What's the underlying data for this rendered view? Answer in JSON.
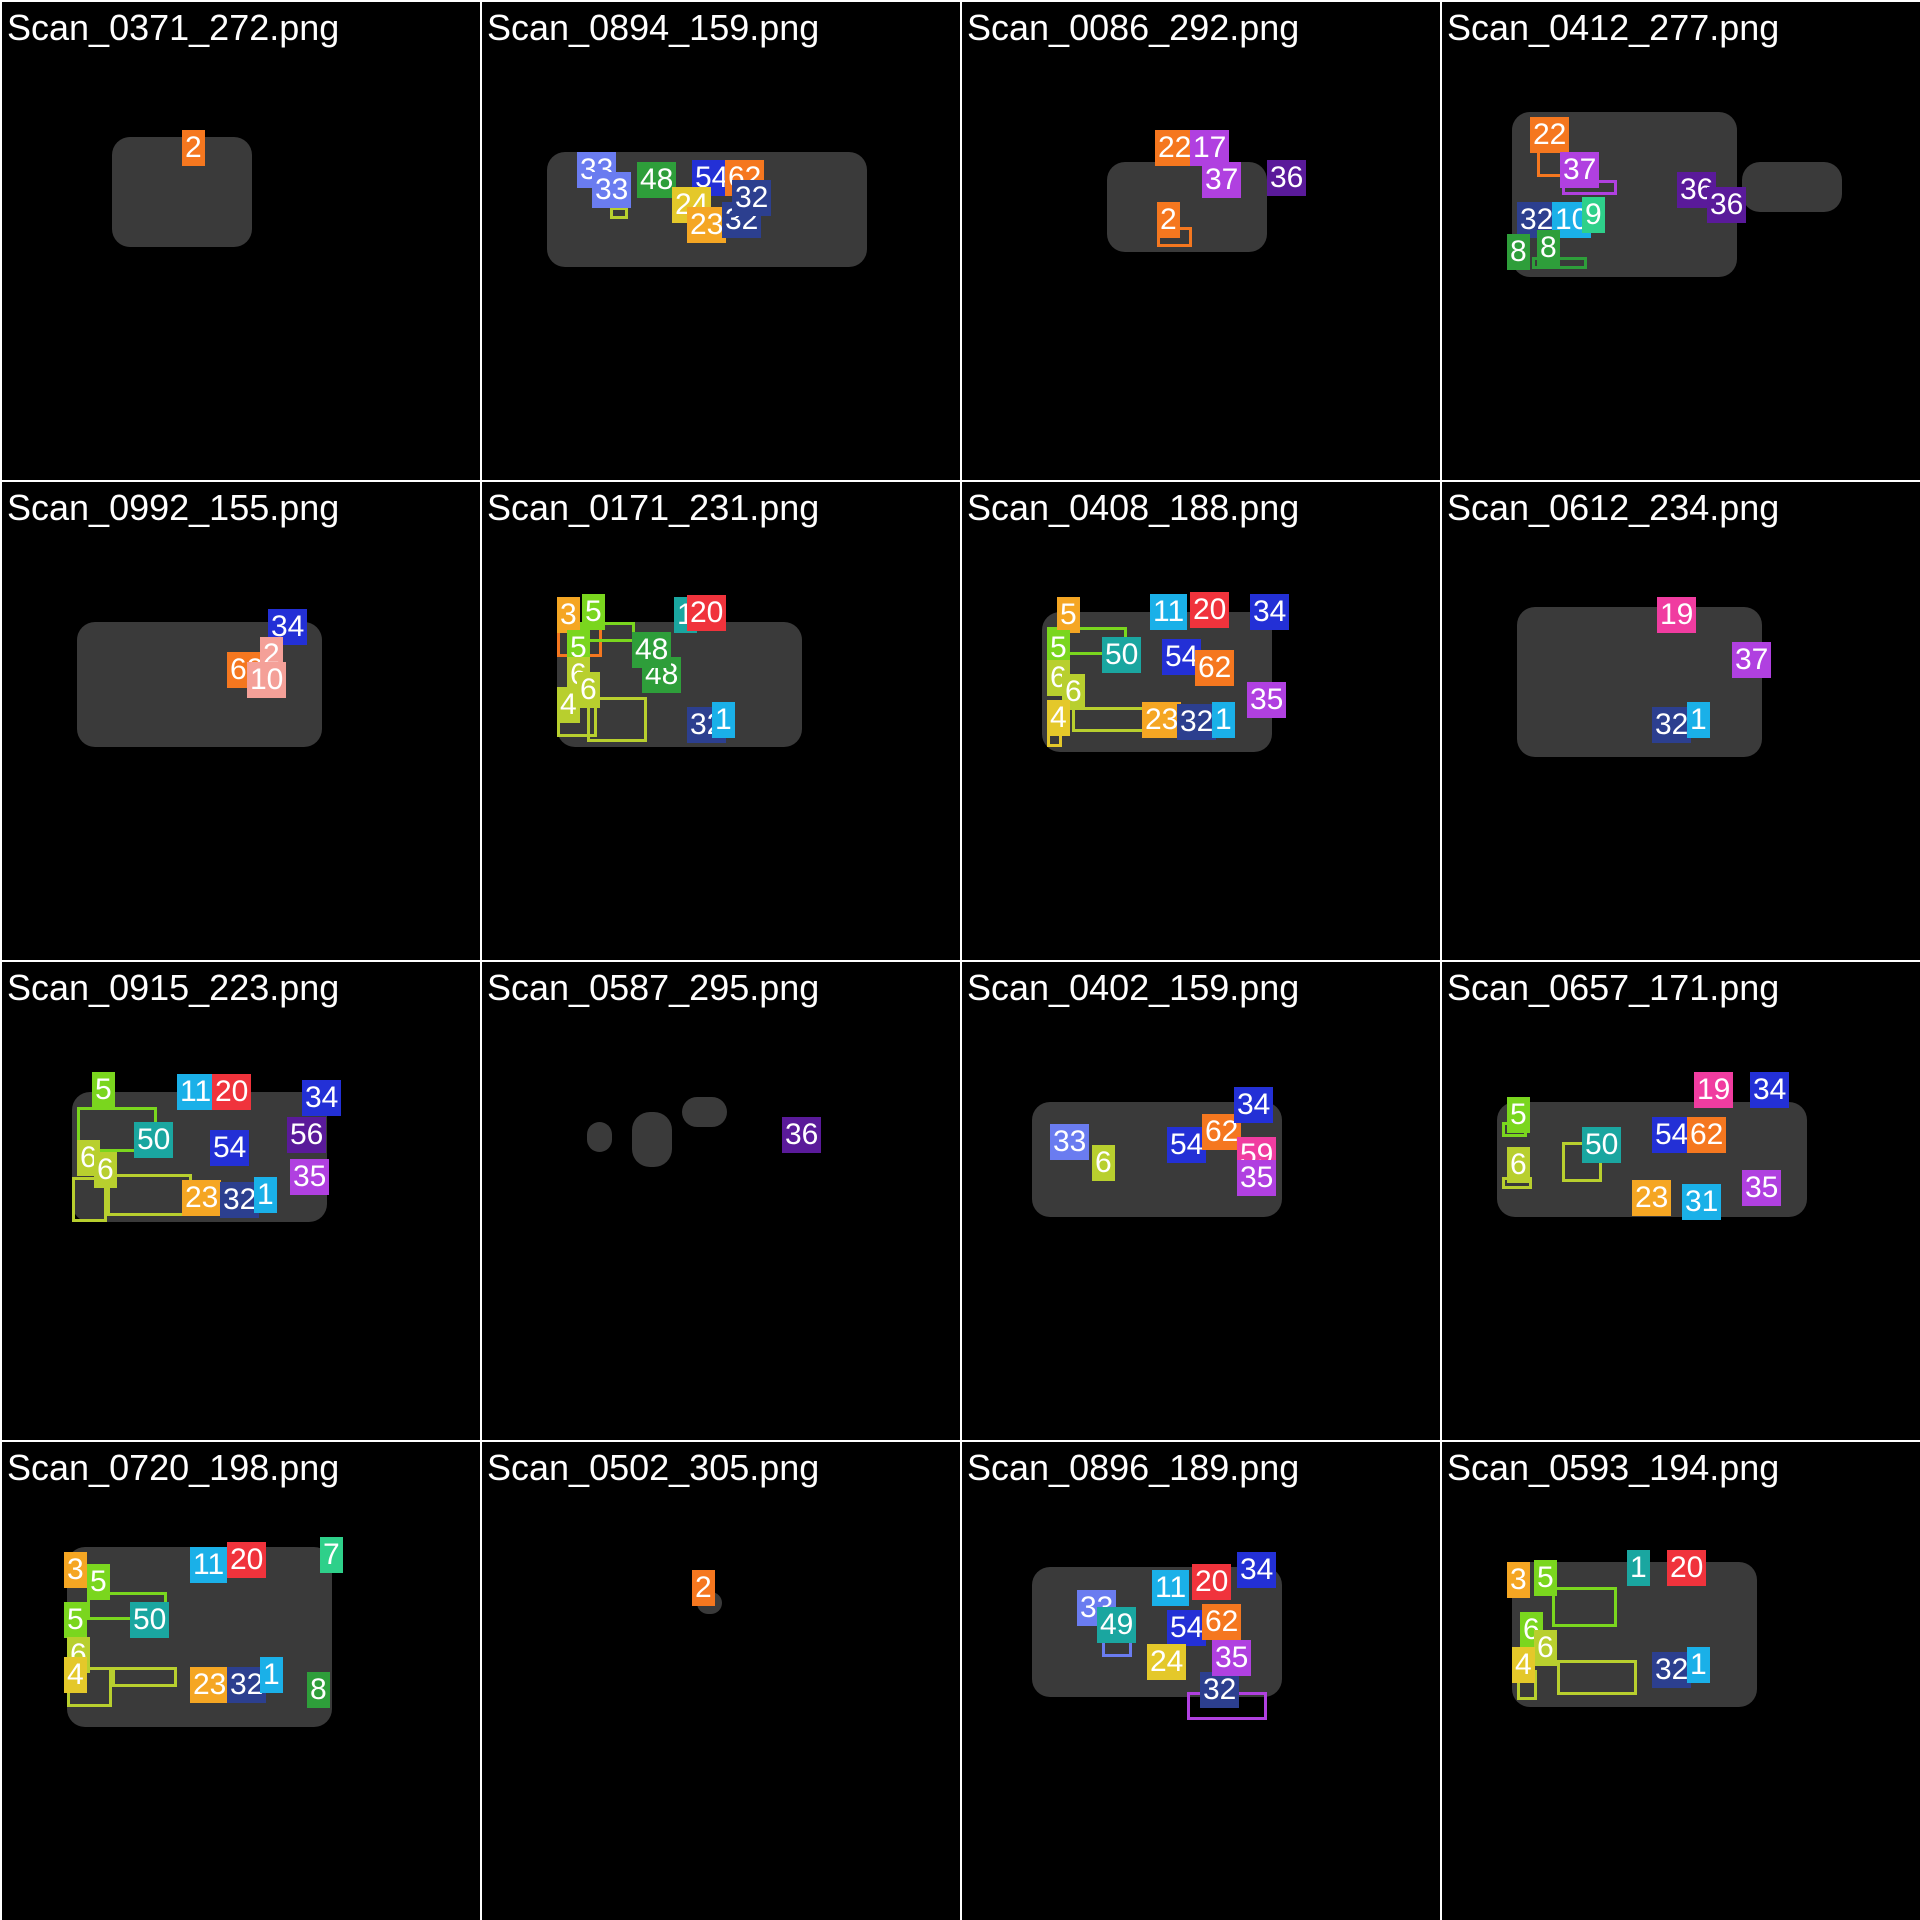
{
  "tiles": [
    {
      "title": "Scan_0371_272.png"
    },
    {
      "title": "Scan_0894_159.png"
    },
    {
      "title": "Scan_0086_292.png"
    },
    {
      "title": "Scan_0412_277.png"
    },
    {
      "title": "Scan_0992_155.png"
    },
    {
      "title": "Scan_0171_231.png"
    },
    {
      "title": "Scan_0408_188.png"
    },
    {
      "title": "Scan_0612_234.png"
    },
    {
      "title": "Scan_0915_223.png"
    },
    {
      "title": "Scan_0587_295.png"
    },
    {
      "title": "Scan_0402_159.png"
    },
    {
      "title": "Scan_0657_171.png"
    },
    {
      "title": "Scan_0720_198.png"
    },
    {
      "title": "Scan_0502_305.png"
    },
    {
      "title": "Scan_0896_189.png"
    },
    {
      "title": "Scan_0593_194.png"
    }
  ],
  "labels": {
    "t0": [
      "2"
    ],
    "t1": [
      "33",
      "33",
      "48",
      "54",
      "62",
      "24",
      "23",
      "32",
      "32"
    ],
    "t2": [
      "22",
      "17",
      "37",
      "36",
      "2"
    ],
    "t3": [
      "22",
      "37",
      "32",
      "10",
      "9",
      "36",
      "36",
      "8",
      "8"
    ],
    "t4": [
      "34",
      "62",
      "2",
      "10"
    ],
    "t5": [
      "3",
      "5",
      "5",
      "1",
      "20",
      "48",
      "48",
      "6",
      "6",
      "4",
      "32",
      "1"
    ],
    "t6": [
      "5",
      "11",
      "20",
      "34",
      "50",
      "54",
      "62",
      "5",
      "6",
      "6",
      "4",
      "23",
      "32",
      "1",
      "35"
    ],
    "t7": [
      "19",
      "37",
      "32",
      "1"
    ],
    "t8": [
      "5",
      "11",
      "20",
      "34",
      "50",
      "54",
      "56",
      "6",
      "6",
      "23",
      "32",
      "1",
      "35"
    ],
    "t9": [
      "36"
    ],
    "t10": [
      "33",
      "54",
      "62",
      "34",
      "59",
      "35",
      "6"
    ],
    "t11": [
      "19",
      "34",
      "5",
      "50",
      "54",
      "62",
      "6",
      "23",
      "31",
      "35"
    ],
    "t12": [
      "3",
      "5",
      "11",
      "20",
      "50",
      "5",
      "6",
      "4",
      "23",
      "32",
      "1",
      "8",
      "7"
    ],
    "t13": [
      "2"
    ],
    "t14": [
      "11",
      "20",
      "34",
      "33",
      "49",
      "54",
      "62",
      "24",
      "32",
      "35"
    ],
    "t15": [
      "3",
      "5",
      "1",
      "20",
      "6",
      "6",
      "4",
      "32",
      "1"
    ]
  },
  "colors": {
    "orange": "#f5771f",
    "blue": "#2330d6",
    "indigo": "#2c3f8f",
    "periwinkle": "#6a7cf0",
    "green": "#2e9e3a",
    "lime": "#7ad61e",
    "olive": "#b8cf2e",
    "yellow": "#e4c82a",
    "gold": "#f5a623",
    "red": "#f0333c",
    "pink": "#f03ca0",
    "purple": "#b040e0",
    "violet": "#5a1a9a",
    "teal": "#1aa6a0",
    "cyan": "#1ab0e8",
    "salmon": "#f4a098",
    "mint": "#2ed08a"
  }
}
